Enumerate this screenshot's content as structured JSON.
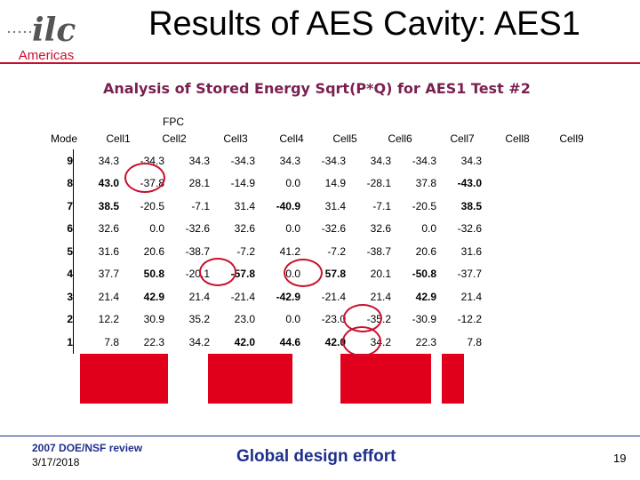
{
  "header": {
    "logo_text": "Americas",
    "title": "Results of AES Cavity: AES1"
  },
  "subtitle": "Analysis of Stored Energy Sqrt(P*Q) for AES1 Test #2",
  "fpc_label": "FPC",
  "columns": [
    "Mode",
    "Cell1",
    "Cell2",
    "Cell3",
    "Cell4",
    "Cell5",
    "Cell6",
    "Cell7",
    "Cell8",
    "Cell9"
  ],
  "rows": [
    {
      "mode": "9",
      "values": [
        "34.3",
        "-34.3",
        "34.3",
        "-34.3",
        "34.3",
        "-34.3",
        "34.3",
        "-34.3",
        "34.3"
      ]
    },
    {
      "mode": "8",
      "values": [
        "43.0",
        "-37.8",
        "28.1",
        "-14.9",
        "0.0",
        "14.9",
        "-28.1",
        "37.8",
        "-43.0"
      ]
    },
    {
      "mode": "7",
      "values": [
        "38.5",
        "-20.5",
        "-7.1",
        "31.4",
        "-40.9",
        "31.4",
        "-7.1",
        "-20.5",
        "38.5"
      ]
    },
    {
      "mode": "6",
      "values": [
        "32.6",
        "0.0",
        "-32.6",
        "32.6",
        "0.0",
        "-32.6",
        "32.6",
        "0.0",
        "-32.6"
      ]
    },
    {
      "mode": "5",
      "values": [
        "31.6",
        "20.6",
        "-38.7",
        "-7.2",
        "41.2",
        "-7.2",
        "-38.7",
        "20.6",
        "31.6"
      ]
    },
    {
      "mode": "4",
      "values": [
        "37.7",
        "50.8",
        "-20.1",
        "-57.8",
        "0.0",
        "57.8",
        "20.1",
        "-50.8",
        "-37.7"
      ]
    },
    {
      "mode": "3",
      "values": [
        "21.4",
        "42.9",
        "21.4",
        "-21.4",
        "-42.9",
        "-21.4",
        "21.4",
        "42.9",
        "21.4"
      ]
    },
    {
      "mode": "2",
      "values": [
        "12.2",
        "30.9",
        "35.2",
        "23.0",
        "0.0",
        "-23.0",
        "-35.2",
        "-30.9",
        "-12.2"
      ]
    },
    {
      "mode": "1",
      "values": [
        "7.8",
        "22.3",
        "34.2",
        "42.0",
        "44.6",
        "42.0",
        "34.2",
        "22.3",
        "7.8"
      ]
    }
  ],
  "footer": {
    "review": "2007 DOE/NSF review",
    "date": "3/17/2018",
    "center": "Global design effort",
    "page": "19"
  },
  "colors": {
    "accent": "#c8102e",
    "subtitle": "#7a1f4f",
    "footer_blue": "#1f2f8c",
    "highlight": "#e0001b"
  }
}
